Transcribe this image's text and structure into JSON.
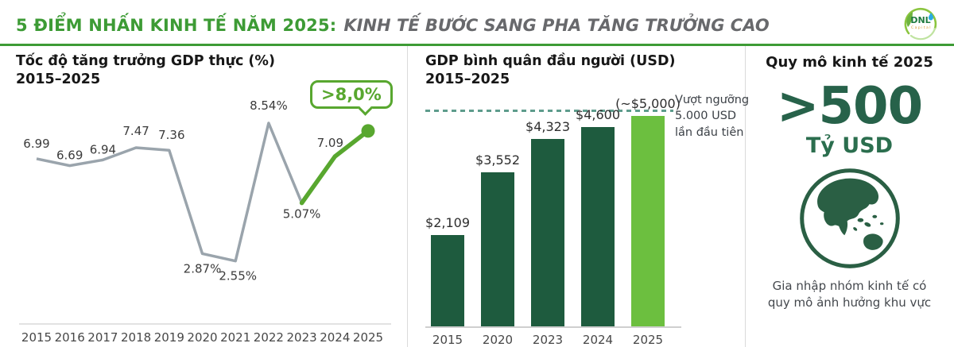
{
  "header": {
    "title_green": "5 ĐIỂM NHẤN KINH TẾ NĂM 2025:",
    "title_gray": "KINH TẾ BƯỚC SANG PHA TĂNG TRƯỞNG CAO",
    "logo": {
      "name": "DNL",
      "sub": "Capital"
    }
  },
  "colors": {
    "accent_green": "#3d9b35",
    "line_gray": "#9aa4ac",
    "line_green": "#58a72f",
    "bar_dark_green": "#1e5b3e",
    "bar_light_green": "#6cbf3f",
    "threshold_teal": "#5e9c8c",
    "big_number_green": "#27624a"
  },
  "chart_data": [
    {
      "type": "line",
      "title": "Tốc độ tăng trưởng GDP thực (%)",
      "subtitle": "2015–2025",
      "x": [
        "2015",
        "2016",
        "2017",
        "2018",
        "2019",
        "2020",
        "2021",
        "2022",
        "2023",
        "2024",
        "2025"
      ],
      "values": [
        6.99,
        6.69,
        6.94,
        7.47,
        7.36,
        2.87,
        2.55,
        8.54,
        5.07,
        7.09,
        8.2
      ],
      "point_labels": [
        "6.99",
        "6.69",
        "6.94",
        "7.47",
        "7.36",
        "2.87%",
        "2.55%",
        "8.54%",
        "5.07%",
        "7.09",
        ""
      ],
      "callout": ">8,0%",
      "highlight_from_index": 8,
      "ylim": [
        2.0,
        9.0
      ],
      "grid": false,
      "legend": "none"
    },
    {
      "type": "bar",
      "title": "GDP bình quân đầu người (USD)",
      "subtitle": "2015–2025",
      "categories": [
        "2015",
        "2020",
        "2023",
        "2024",
        "2025"
      ],
      "values": [
        2109,
        3552,
        4323,
        4600,
        4850
      ],
      "bar_labels": [
        "$2,109",
        "$3,552",
        "$4,323",
        "$4,600",
        "(~$5,000)"
      ],
      "highlight_index": 4,
      "threshold": {
        "value": 5000,
        "annotation": "Vượt ngưỡng 5.000 USD lần đầu tiên"
      },
      "ylim": [
        0,
        5000
      ],
      "grid": false,
      "legend": "none"
    }
  ],
  "right_panel": {
    "title": "Quy mô kinh tế 2025",
    "big_value": ">500",
    "unit": "Tỷ USD",
    "caption": "Gia nhập nhóm kinh tế có quy mô ảnh hưởng khu vực"
  }
}
